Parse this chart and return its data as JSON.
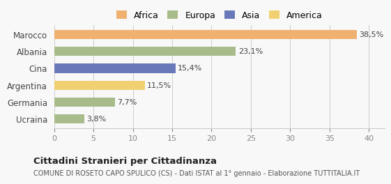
{
  "categories": [
    "Ucraina",
    "Germania",
    "Argentina",
    "Cina",
    "Albania",
    "Marocco"
  ],
  "values": [
    3.8,
    7.7,
    11.5,
    15.4,
    23.1,
    38.5
  ],
  "labels": [
    "3,8%",
    "7,7%",
    "11,5%",
    "15,4%",
    "23,1%",
    "38,5%"
  ],
  "bar_colors": [
    "#a8bb8a",
    "#a8bb8a",
    "#f0d070",
    "#6878b8",
    "#a8bb8a",
    "#f0b070"
  ],
  "legend_items": [
    {
      "label": "Africa",
      "color": "#f0b070"
    },
    {
      "label": "Europa",
      "color": "#a8bb8a"
    },
    {
      "label": "Asia",
      "color": "#6878b8"
    },
    {
      "label": "America",
      "color": "#f0d070"
    }
  ],
  "xlim": [
    0,
    42
  ],
  "xticks": [
    0,
    5,
    10,
    15,
    20,
    25,
    30,
    35,
    40
  ],
  "title": "Cittadini Stranieri per Cittadinanza",
  "subtitle": "COMUNE DI ROSETO CAPO SPULICO (CS) - Dati ISTAT al 1° gennaio - Elaborazione TUTTITALIA.IT",
  "bg_color": "#f8f8f8",
  "grid_color": "#cccccc",
  "bar_height": 0.55
}
